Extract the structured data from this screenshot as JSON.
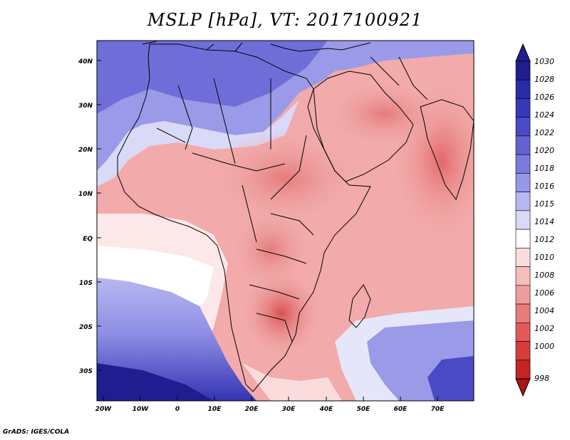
{
  "title": "MSLP [hPa], VT: 2017100921",
  "credit": "GrADS: IGES/COLA",
  "axes": {
    "lat_labels": [
      "40N",
      "30N",
      "20N",
      "10N",
      "EQ",
      "10S",
      "20S",
      "30S"
    ],
    "lon_labels": [
      "20W",
      "10W",
      "0",
      "10E",
      "20E",
      "30E",
      "40E",
      "50E",
      "60E",
      "70E"
    ]
  },
  "colorbar": {
    "labels": [
      "1030",
      "1028",
      "1026",
      "1024",
      "1022",
      "1020",
      "1018",
      "1016",
      "1015",
      "1014",
      "1012",
      "1010",
      "1008",
      "1006",
      "1004",
      "1002",
      "1000",
      "998"
    ],
    "colors": [
      "#1f1d8f",
      "#2b2aa8",
      "#3837b8",
      "#4b4ac6",
      "#6362d2",
      "#7b7ade",
      "#9797e8",
      "#b7b7f1",
      "#d9d9f8",
      "#ffffff",
      "#fbdcdc",
      "#f6bdbd",
      "#f09c9c",
      "#e97b7b",
      "#e05a5a",
      "#d63c3c",
      "#c42424",
      "#a81616"
    ]
  }
}
